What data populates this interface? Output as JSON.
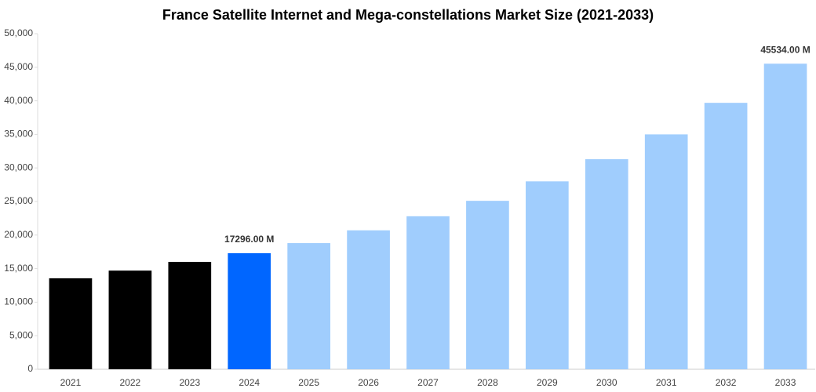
{
  "chart_data": {
    "type": "bar",
    "title": "France Satellite Internet and Mega-constellations Market Size (2021-2033)",
    "categories": [
      "2021",
      "2022",
      "2023",
      "2024",
      "2025",
      "2026",
      "2027",
      "2028",
      "2029",
      "2030",
      "2031",
      "2032",
      "2033"
    ],
    "values": [
      13550,
      14700,
      16000,
      17296,
      18800,
      20700,
      22800,
      25100,
      28000,
      31300,
      35000,
      39700,
      45534
    ],
    "value_labels": [
      null,
      null,
      null,
      "17296.00 M",
      null,
      null,
      null,
      null,
      null,
      null,
      null,
      null,
      "45534.00 M"
    ],
    "colors": [
      "#000000",
      "#000000",
      "#000000",
      "#0066ff",
      "#a0cdfd",
      "#a0cdfd",
      "#a0cdfd",
      "#a0cdfd",
      "#a0cdfd",
      "#a0cdfd",
      "#a0cdfd",
      "#a0cdfd",
      "#a0cdfd"
    ],
    "ylim": [
      0,
      50000
    ],
    "yticks": [
      0,
      {
        "value": 5000,
        "label": "5,000"
      },
      {
        "value": 10000,
        "label": "10,000"
      },
      {
        "value": 15000,
        "label": "15,000"
      },
      {
        "value": 20000,
        "label": "20,000"
      },
      {
        "value": 25000,
        "label": "25,000"
      },
      {
        "value": 30000,
        "label": "30,000"
      },
      {
        "value": 35000,
        "label": "35,000"
      },
      {
        "value": 40000,
        "label": "40,000"
      },
      {
        "value": 45000,
        "label": "45,000"
      },
      {
        "value": 50000,
        "label": "50,000"
      }
    ],
    "grid": false
  }
}
